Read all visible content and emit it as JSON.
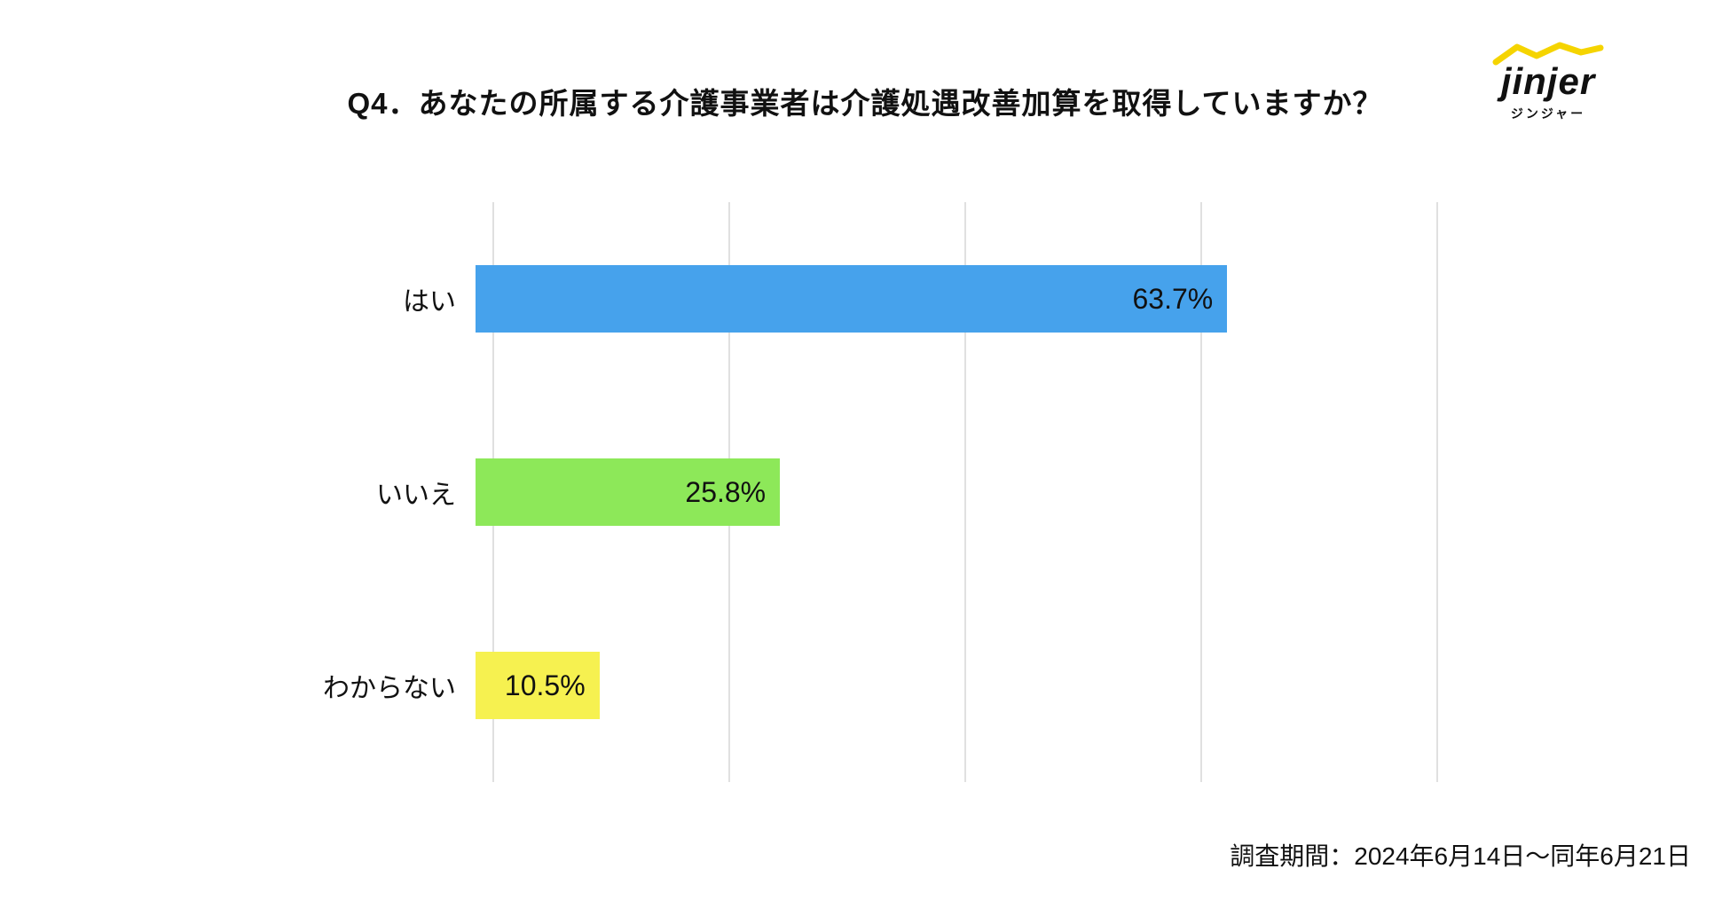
{
  "logo": {
    "name": "jinjer",
    "katakana": "ジンジャー",
    "accent_color": "#f5d400"
  },
  "footer": {
    "text": "調査期間：2024年6月14日〜同年6月21日"
  },
  "chart_data": {
    "type": "bar",
    "orientation": "horizontal",
    "title": "Q4．あなたの所属する介護事業者は介護処遇改善加算を取得していますか？",
    "categories": [
      "はい",
      "いいえ",
      "わからない"
    ],
    "values": [
      63.7,
      25.8,
      10.5
    ],
    "value_labels": [
      "63.7%",
      "25.8%",
      "10.5%"
    ],
    "bar_colors": [
      "#46a2ec",
      "#8de859",
      "#f6f150"
    ],
    "xlabel": "",
    "ylabel": "",
    "xlim": [
      0,
      80
    ],
    "gridline_interval": 20,
    "grid": true,
    "gridline_color": "#e0e0e0",
    "legend": false
  }
}
